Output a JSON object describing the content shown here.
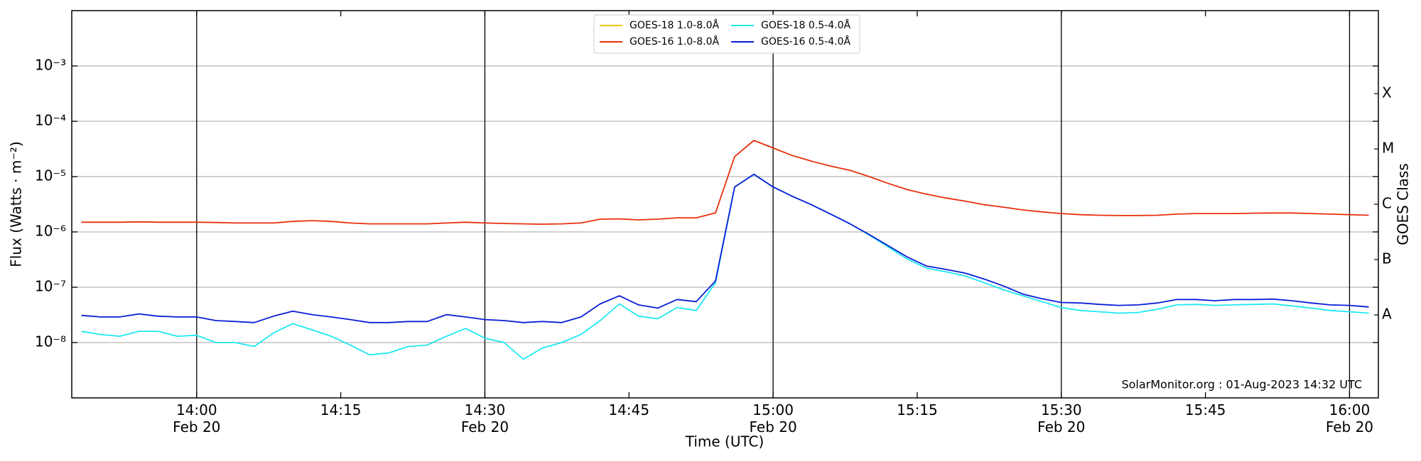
{
  "chart_data": {
    "type": "line",
    "y_label": "Flux (Watts · m⁻²)",
    "x_label": "Time (UTC)",
    "y2_label": "GOES Class",
    "annotation": "SolarMonitor.org : 01-Aug-2023 14:32 UTC",
    "ylog": true,
    "grid": true,
    "legend": "upper center",
    "ylim": [
      1e-09,
      0.01
    ],
    "yticks": [
      {
        "value": 1e-08,
        "label": "10⁻⁸"
      },
      {
        "value": 1e-07,
        "label": "10⁻⁷"
      },
      {
        "value": 1e-06,
        "label": "10⁻⁶"
      },
      {
        "value": 1e-05,
        "label": "10⁻⁵"
      },
      {
        "value": 0.0001,
        "label": "10⁻⁴"
      },
      {
        "value": 0.001,
        "label": "10⁻³"
      }
    ],
    "y2lim": [
      1e-09,
      0.01
    ],
    "y2ticks": [
      {
        "value": 3.162e-08,
        "label": "A"
      },
      {
        "value": 3.162e-07,
        "label": "B"
      },
      {
        "value": 3.162e-06,
        "label": "C"
      },
      {
        "value": 3.162e-05,
        "label": "M"
      },
      {
        "value": 0.0003162,
        "label": "X"
      }
    ],
    "xlim": [
      "13:47",
      "16:03"
    ],
    "xticks": [
      {
        "value": "14:00",
        "label": "14:00\nFeb 20"
      },
      "14:15",
      {
        "value": "14:30",
        "label": "14:30\nFeb 20"
      },
      "14:45",
      {
        "value": "15:00",
        "label": "15:00\nFeb 20"
      },
      "15:15",
      {
        "value": "15:30",
        "label": "15:30\nFeb 20"
      },
      "15:45",
      {
        "value": "16:00",
        "label": "16:00\nFeb 20"
      }
    ],
    "vlines": [
      "14:00",
      "14:30",
      "15:00",
      "15:30",
      "16:00"
    ],
    "x": [
      "13:48",
      "13:50",
      "13:52",
      "13:54",
      "13:56",
      "13:58",
      "14:00",
      "14:02",
      "14:04",
      "14:06",
      "14:08",
      "14:10",
      "14:12",
      "14:14",
      "14:16",
      "14:18",
      "14:20",
      "14:22",
      "14:24",
      "14:26",
      "14:28",
      "14:30",
      "14:32",
      "14:34",
      "14:36",
      "14:38",
      "14:40",
      "14:42",
      "14:44",
      "14:46",
      "14:48",
      "14:50",
      "14:52",
      "14:54",
      "14:56",
      "14:58",
      "15:00",
      "15:02",
      "15:04",
      "15:06",
      "15:08",
      "15:10",
      "15:12",
      "15:14",
      "15:16",
      "15:18",
      "15:20",
      "15:22",
      "15:24",
      "15:26",
      "15:28",
      "15:30",
      "15:32",
      "15:34",
      "15:36",
      "15:38",
      "15:40",
      "15:42",
      "15:44",
      "15:46",
      "15:48",
      "15:50",
      "15:52",
      "15:54",
      "15:56",
      "15:58",
      "16:00",
      "16:02"
    ],
    "series": [
      {
        "name": "GOES-18 1.0-8.0Å",
        "color": "#f5c800",
        "values": [
          null,
          null,
          null,
          null,
          null,
          null,
          null,
          null,
          null,
          null,
          null,
          null,
          null,
          null,
          null,
          null,
          null,
          null,
          null,
          null,
          null,
          null,
          null,
          null,
          null,
          null,
          null,
          null,
          null,
          null,
          null,
          null,
          null,
          null,
          null,
          null,
          null,
          null,
          null,
          null,
          null,
          null,
          null,
          null,
          null,
          null,
          null,
          null,
          null,
          null,
          null,
          null,
          null,
          null,
          null,
          null,
          null,
          null,
          null,
          null,
          null,
          null,
          null,
          null,
          null,
          null,
          null,
          null
        ]
      },
      {
        "name": "GOES-16 1.0-8.0Å",
        "color": "#e8300c",
        "values": [
          1.5e-06,
          1.5e-06,
          1.5e-06,
          1.52e-06,
          1.5e-06,
          1.5e-06,
          1.5e-06,
          1.48e-06,
          1.45e-06,
          1.45e-06,
          1.45e-06,
          1.55e-06,
          1.6e-06,
          1.55e-06,
          1.45e-06,
          1.4e-06,
          1.4e-06,
          1.4e-06,
          1.4e-06,
          1.45e-06,
          1.5e-06,
          1.45e-06,
          1.42e-06,
          1.4e-06,
          1.38e-06,
          1.4e-06,
          1.45e-06,
          1.7e-06,
          1.72e-06,
          1.65e-06,
          1.7e-06,
          1.8e-06,
          1.8e-06,
          2.2e-06,
          2.3e-05,
          4.5e-05,
          3.3e-05,
          2.4e-05,
          1.9e-05,
          1.55e-05,
          1.3e-05,
          1e-05,
          7.5e-06,
          5.8e-06,
          4.8e-06,
          4.1e-06,
          3.6e-06,
          3.1e-06,
          2.8e-06,
          2.5e-06,
          2.3e-06,
          2.15e-06,
          2.05e-06,
          2e-06,
          1.98e-06,
          1.98e-06,
          2e-06,
          2.1e-06,
          2.15e-06,
          2.15e-06,
          2.15e-06,
          2.18e-06,
          2.2e-06,
          2.2e-06,
          2.15e-06,
          2.1e-06,
          2.05e-06,
          2e-06
        ]
      },
      {
        "name": "GOES-18 0.5-4.0Å",
        "color": "#1ee8f0",
        "values": [
          1.6e-08,
          1.4e-08,
          1.3e-08,
          1.6e-08,
          1.6e-08,
          1.3e-08,
          1.35e-08,
          1e-08,
          1e-08,
          8.5e-09,
          1.5e-08,
          2.2e-08,
          1.7e-08,
          1.3e-08,
          9e-09,
          6e-09,
          6.5e-09,
          8.5e-09,
          9e-09,
          1.3e-08,
          1.8e-08,
          1.2e-08,
          1e-08,
          5e-09,
          8e-09,
          1e-08,
          1.4e-08,
          2.5e-08,
          5e-08,
          3e-08,
          2.7e-08,
          4.3e-08,
          3.8e-08,
          1.2e-07,
          6.5e-06,
          1.1e-05,
          6.5e-06,
          4.4e-06,
          3.1e-06,
          2.1e-06,
          1.4e-06,
          8.8e-07,
          5.3e-07,
          3.2e-07,
          2.2e-07,
          1.9e-07,
          1.6e-07,
          1.2e-07,
          9e-08,
          7e-08,
          5.5e-08,
          4.3e-08,
          3.8e-08,
          3.6e-08,
          3.4e-08,
          3.5e-08,
          4e-08,
          4.8e-08,
          4.9e-08,
          4.7e-08,
          4.8e-08,
          4.9e-08,
          5e-08,
          4.6e-08,
          4.2e-08,
          3.8e-08,
          3.6e-08,
          3.4e-08
        ]
      },
      {
        "name": "GOES-16 0.5-4.0Å",
        "color": "#0a1ed6",
        "values": [
          3.1e-08,
          2.9e-08,
          2.9e-08,
          3.3e-08,
          3e-08,
          2.9e-08,
          2.9e-08,
          2.5e-08,
          2.4e-08,
          2.3e-08,
          3e-08,
          3.7e-08,
          3.2e-08,
          2.9e-08,
          2.6e-08,
          2.3e-08,
          2.3e-08,
          2.4e-08,
          2.4e-08,
          3.2e-08,
          2.9e-08,
          2.6e-08,
          2.5e-08,
          2.3e-08,
          2.4e-08,
          2.3e-08,
          2.9e-08,
          5e-08,
          7e-08,
          4.8e-08,
          4.2e-08,
          6e-08,
          5.5e-08,
          1.3e-07,
          6.5e-06,
          1.1e-05,
          6.5e-06,
          4.4e-06,
          3.1e-06,
          2.1e-06,
          1.4e-06,
          9e-07,
          5.6e-07,
          3.5e-07,
          2.4e-07,
          2.1e-07,
          1.8e-07,
          1.4e-07,
          1.05e-07,
          7.5e-08,
          6.2e-08,
          5.3e-08,
          5.2e-08,
          4.9e-08,
          4.7e-08,
          4.8e-08,
          5.2e-08,
          6e-08,
          6e-08,
          5.7e-08,
          6e-08,
          6e-08,
          6.1e-08,
          5.7e-08,
          5.2e-08,
          4.8e-08,
          4.7e-08,
          4.4e-08
        ]
      }
    ]
  }
}
